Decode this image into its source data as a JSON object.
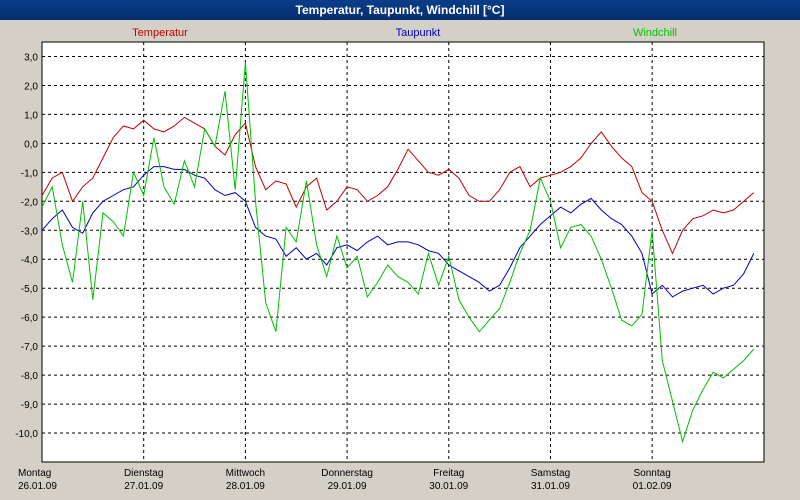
{
  "window": {
    "title": "Temperatur, Taupunkt, Windchill [°C]"
  },
  "chart_data": {
    "type": "line",
    "title": "Temperatur, Taupunkt, Windchill [°C]",
    "ylim": [
      -11,
      3.5
    ],
    "xlim": [
      0,
      7.1
    ],
    "y_ticks": [
      3,
      2,
      1,
      0,
      -1,
      -2,
      -3,
      -4,
      -5,
      -6,
      -7,
      -8,
      -9,
      -10
    ],
    "y_tick_labels": [
      "3,0",
      "2,0",
      "1,0",
      "0,0",
      "-1,0",
      "-2,0",
      "-3,0",
      "-4,0",
      "-5,0",
      "-6,0",
      "-7,0",
      "-8,0",
      "-9,0",
      "-10,0"
    ],
    "x_ticks": [
      {
        "day": "Montag",
        "date": "26.01.09",
        "x": 0
      },
      {
        "day": "Dienstag",
        "date": "27.01.09",
        "x": 1
      },
      {
        "day": "Mittwoch",
        "date": "28.01.09",
        "x": 2
      },
      {
        "day": "Donnerstag",
        "date": "29.01.09",
        "x": 3
      },
      {
        "day": "Freitag",
        "date": "30.01.09",
        "x": 4
      },
      {
        "day": "Samstag",
        "date": "31.01.09",
        "x": 5
      },
      {
        "day": "Sonntag",
        "date": "01.02.09",
        "x": 6
      }
    ],
    "grid": true,
    "series": [
      {
        "name": "Temperatur",
        "color": "#c00000",
        "x": [
          0,
          0.1,
          0.2,
          0.3,
          0.4,
          0.5,
          0.6,
          0.7,
          0.8,
          0.9,
          1.0,
          1.1,
          1.2,
          1.3,
          1.4,
          1.5,
          1.6,
          1.7,
          1.8,
          1.9,
          2.0,
          2.1,
          2.2,
          2.3,
          2.4,
          2.5,
          2.6,
          2.7,
          2.8,
          2.9,
          3.0,
          3.1,
          3.2,
          3.3,
          3.4,
          3.5,
          3.6,
          3.7,
          3.8,
          3.9,
          4.0,
          4.1,
          4.2,
          4.3,
          4.4,
          4.5,
          4.6,
          4.7,
          4.8,
          4.9,
          5.0,
          5.1,
          5.2,
          5.3,
          5.4,
          5.5,
          5.6,
          5.7,
          5.8,
          5.9,
          6.0,
          6.1,
          6.2,
          6.3,
          6.4,
          6.5,
          6.6,
          6.7,
          6.8,
          6.9,
          7.0
        ],
        "values": [
          -1.8,
          -1.2,
          -1.0,
          -2.0,
          -1.5,
          -1.2,
          -0.5,
          0.2,
          0.6,
          0.5,
          0.8,
          0.5,
          0.4,
          0.6,
          0.9,
          0.7,
          0.5,
          -0.1,
          -0.4,
          0.3,
          0.7,
          -0.8,
          -1.6,
          -1.3,
          -1.4,
          -2.2,
          -1.5,
          -1.2,
          -2.3,
          -2.0,
          -1.5,
          -1.6,
          -2.0,
          -1.8,
          -1.5,
          -0.9,
          -0.2,
          -0.6,
          -1.0,
          -1.1,
          -0.9,
          -1.2,
          -1.8,
          -2.0,
          -2.0,
          -1.6,
          -1.0,
          -0.8,
          -1.5,
          -1.2,
          -1.1,
          -1.0,
          -0.8,
          -0.5,
          0.0,
          0.4,
          -0.1,
          -0.5,
          -0.8,
          -1.7,
          -2.0,
          -3.0,
          -3.8,
          -3.0,
          -2.6,
          -2.5,
          -2.3,
          -2.4,
          -2.3,
          -2.0,
          -1.7
        ]
      },
      {
        "name": "Taupunkt",
        "color": "#0000c0",
        "x": [
          0,
          0.1,
          0.2,
          0.3,
          0.4,
          0.5,
          0.6,
          0.7,
          0.8,
          0.9,
          1.0,
          1.1,
          1.2,
          1.3,
          1.4,
          1.5,
          1.6,
          1.7,
          1.8,
          1.9,
          2.0,
          2.1,
          2.2,
          2.3,
          2.4,
          2.5,
          2.6,
          2.7,
          2.8,
          2.9,
          3.0,
          3.1,
          3.2,
          3.3,
          3.4,
          3.5,
          3.6,
          3.7,
          3.8,
          3.9,
          4.0,
          4.1,
          4.2,
          4.3,
          4.4,
          4.5,
          4.6,
          4.7,
          4.8,
          4.9,
          5.0,
          5.1,
          5.2,
          5.3,
          5.4,
          5.5,
          5.6,
          5.7,
          5.8,
          5.9,
          6.0,
          6.1,
          6.2,
          6.3,
          6.4,
          6.5,
          6.6,
          6.7,
          6.8,
          6.9,
          7.0
        ],
        "values": [
          -3.0,
          -2.6,
          -2.3,
          -2.9,
          -3.1,
          -2.4,
          -2.0,
          -1.8,
          -1.6,
          -1.5,
          -1.1,
          -0.8,
          -0.8,
          -0.9,
          -0.9,
          -1.1,
          -1.2,
          -1.6,
          -1.8,
          -1.7,
          -2.0,
          -2.9,
          -3.2,
          -3.3,
          -3.9,
          -3.6,
          -4.0,
          -3.8,
          -4.2,
          -3.6,
          -3.5,
          -3.7,
          -3.4,
          -3.2,
          -3.5,
          -3.4,
          -3.4,
          -3.5,
          -3.7,
          -3.8,
          -4.2,
          -4.4,
          -4.6,
          -4.8,
          -5.1,
          -4.9,
          -4.3,
          -3.6,
          -3.2,
          -2.8,
          -2.5,
          -2.2,
          -2.4,
          -2.1,
          -1.9,
          -2.3,
          -2.6,
          -2.8,
          -3.2,
          -3.8,
          -5.2,
          -4.9,
          -5.3,
          -5.1,
          -5.0,
          -4.9,
          -5.2,
          -5.0,
          -4.9,
          -4.5,
          -3.8
        ]
      },
      {
        "name": "Windchill",
        "color": "#00c000",
        "x": [
          0,
          0.1,
          0.2,
          0.3,
          0.4,
          0.5,
          0.6,
          0.7,
          0.8,
          0.9,
          1.0,
          1.1,
          1.2,
          1.3,
          1.4,
          1.5,
          1.6,
          1.7,
          1.8,
          1.9,
          2.0,
          2.1,
          2.2,
          2.3,
          2.4,
          2.5,
          2.6,
          2.7,
          2.8,
          2.9,
          3.0,
          3.1,
          3.2,
          3.3,
          3.4,
          3.5,
          3.6,
          3.7,
          3.8,
          3.9,
          4.0,
          4.1,
          4.2,
          4.3,
          4.4,
          4.5,
          4.6,
          4.7,
          4.8,
          4.9,
          5.0,
          5.1,
          5.2,
          5.3,
          5.4,
          5.5,
          5.6,
          5.7,
          5.8,
          5.9,
          6.0,
          6.1,
          6.2,
          6.3,
          6.4,
          6.5,
          6.6,
          6.7,
          6.8,
          6.9,
          7.0
        ],
        "values": [
          -2.2,
          -1.5,
          -3.5,
          -4.8,
          -2.0,
          -5.4,
          -2.4,
          -2.7,
          -3.2,
          -1.0,
          -1.8,
          0.2,
          -1.5,
          -2.1,
          -0.6,
          -1.5,
          0.5,
          -0.1,
          1.8,
          -1.6,
          2.8,
          -2.0,
          -5.5,
          -6.5,
          -2.9,
          -3.4,
          -1.3,
          -3.5,
          -4.6,
          -3.2,
          -4.3,
          -3.9,
          -5.3,
          -4.8,
          -4.2,
          -4.6,
          -4.8,
          -5.2,
          -3.8,
          -4.9,
          -3.9,
          -5.4,
          -6.0,
          -6.5,
          -6.1,
          -5.7,
          -4.8,
          -3.8,
          -3.0,
          -1.2,
          -2.0,
          -3.6,
          -2.9,
          -2.8,
          -3.2,
          -4.0,
          -5.0,
          -6.1,
          -6.3,
          -5.9,
          -3.0,
          -7.5,
          -8.9,
          -10.3,
          -9.2,
          -8.5,
          -7.9,
          -8.1,
          -7.8,
          -7.5,
          -7.1
        ]
      }
    ]
  }
}
